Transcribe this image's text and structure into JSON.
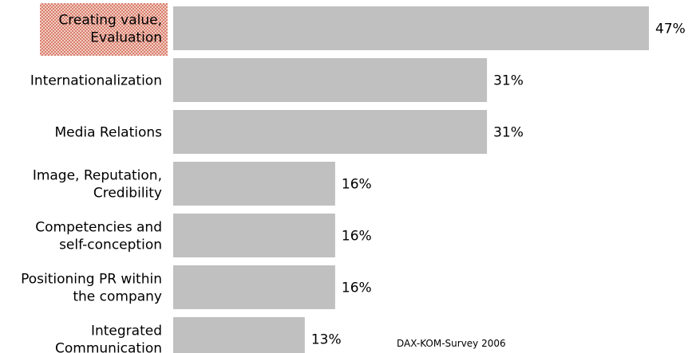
{
  "chart_data": {
    "type": "bar",
    "orientation": "horizontal",
    "categories": [
      [
        "Creating value,",
        "Evaluation"
      ],
      [
        "Internationalization"
      ],
      [
        "Media Relations"
      ],
      [
        "Image, Reputation,",
        "Credibility"
      ],
      [
        "Competencies and",
        "self-conception"
      ],
      [
        "Positioning PR within",
        "the company"
      ],
      [
        "Integrated",
        "Communication"
      ]
    ],
    "values": [
      47,
      31,
      31,
      16,
      16,
      16,
      13
    ],
    "value_labels": [
      "47%",
      "31%",
      "31%",
      "16%",
      "16%",
      "16%",
      "13%"
    ],
    "xlim": [
      0,
      47
    ],
    "highlighted_category_index": 0,
    "bar_color": "#c0c0c0",
    "highlight_color": "#e3a093",
    "grid": false,
    "source_note": "DAX-KOM-Survey 2006"
  }
}
